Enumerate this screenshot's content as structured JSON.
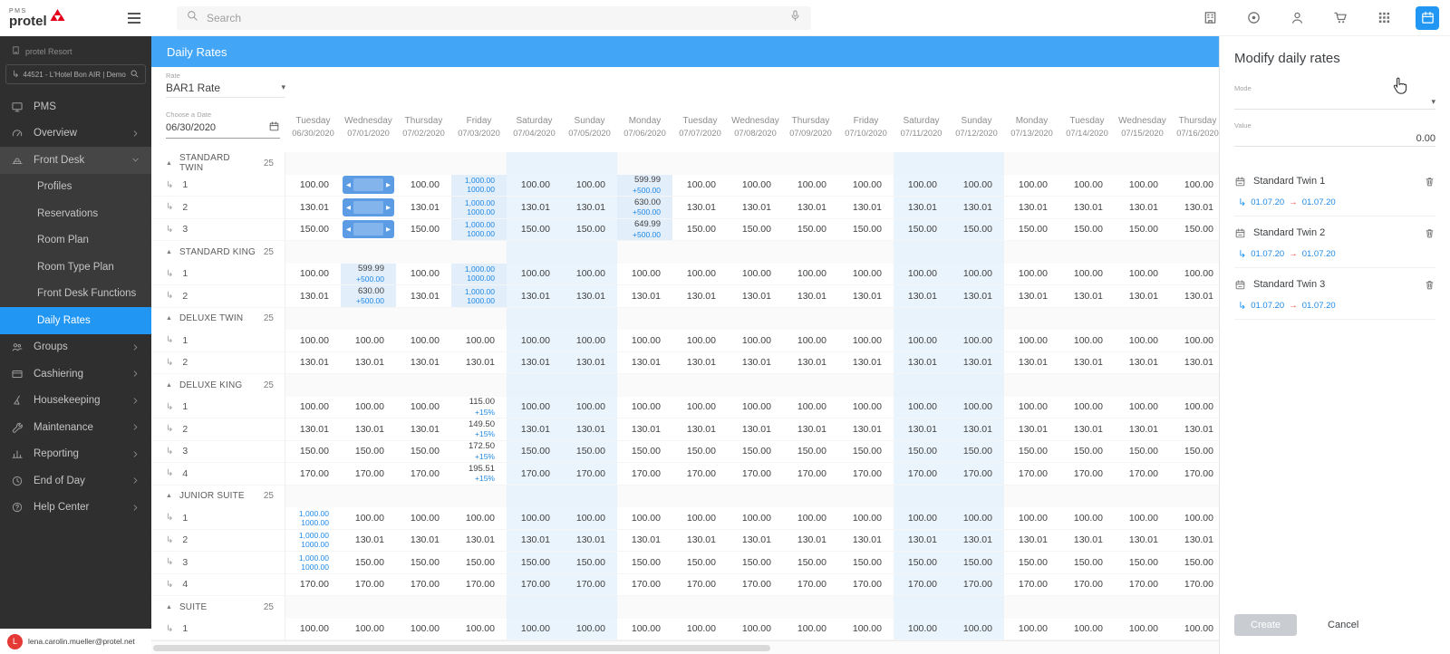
{
  "app": {
    "logo_top": "PMS",
    "logo_main": "protel",
    "brand_red": "#e2001a",
    "accent_blue": "#2196F3",
    "property_label": "protel Resort",
    "hotel_selector": "44521 - L'Hotel  Bon AIR | Demo"
  },
  "topbar": {
    "search_placeholder": "Search",
    "icons": [
      {
        "name": "hotel"
      },
      {
        "name": "record"
      },
      {
        "name": "profile"
      },
      {
        "name": "cart"
      },
      {
        "name": "apps"
      },
      {
        "name": "calendar",
        "active": true
      }
    ]
  },
  "sidebar": {
    "items": [
      {
        "label": "PMS",
        "icon": "pms"
      },
      {
        "label": "Overview",
        "icon": "overview",
        "chevron": "right"
      },
      {
        "label": "Front Desk",
        "icon": "front-desk",
        "chevron": "down",
        "expanded": true
      },
      {
        "label": "Profiles",
        "child": true
      },
      {
        "label": "Reservations",
        "child": true
      },
      {
        "label": "Room Plan",
        "child": true
      },
      {
        "label": "Room Type Plan",
        "child": true
      },
      {
        "label": "Front Desk Functions",
        "child": true
      },
      {
        "label": "Daily Rates",
        "child": true,
        "selected": true
      },
      {
        "label": "Groups",
        "icon": "groups",
        "chevron": "right"
      },
      {
        "label": "Cashiering",
        "icon": "cashiering",
        "chevron": "right"
      },
      {
        "label": "Housekeeping",
        "icon": "housekeeping",
        "chevron": "right"
      },
      {
        "label": "Maintenance",
        "icon": "maintenance",
        "chevron": "right"
      },
      {
        "label": "Reporting",
        "icon": "reporting",
        "chevron": "right"
      },
      {
        "label": "End of Day",
        "icon": "end-of-day",
        "chevron": "right"
      },
      {
        "label": "Help Center",
        "icon": "help",
        "chevron": "right"
      }
    ],
    "avatar_letter": "L",
    "user_email": "lena.carolin.mueller@protel.net"
  },
  "page": {
    "title": "Daily Rates",
    "rate_label": "Rate",
    "rate_value": "BAR1 Rate",
    "date_label": "Choose a Date",
    "date_value": "06/30/2020"
  },
  "rates_table": {
    "weekend_columns": [
      4,
      5,
      11,
      12
    ],
    "columns": [
      {
        "day": "Tuesday",
        "date": "06/30/2020"
      },
      {
        "day": "Wednesday",
        "date": "07/01/2020"
      },
      {
        "day": "Thursday",
        "date": "07/02/2020"
      },
      {
        "day": "Friday",
        "date": "07/03/2020"
      },
      {
        "day": "Saturday",
        "date": "07/04/2020"
      },
      {
        "day": "Sunday",
        "date": "07/05/2020"
      },
      {
        "day": "Monday",
        "date": "07/06/2020"
      },
      {
        "day": "Tuesday",
        "date": "07/07/2020"
      },
      {
        "day": "Wednesday",
        "date": "07/08/2020"
      },
      {
        "day": "Thursday",
        "date": "07/09/2020"
      },
      {
        "day": "Friday",
        "date": "07/10/2020"
      },
      {
        "day": "Saturday",
        "date": "07/11/2020"
      },
      {
        "day": "Sunday",
        "date": "07/12/2020"
      },
      {
        "day": "Monday",
        "date": "07/13/2020"
      },
      {
        "day": "Tuesday",
        "date": "07/14/2020"
      },
      {
        "day": "Wednesday",
        "date": "07/15/2020"
      },
      {
        "day": "Thursday",
        "date": "07/16/2020"
      }
    ],
    "groups": [
      {
        "name": "STANDARD TWIN",
        "count": "25",
        "rows": [
          {
            "label": "1",
            "value": "100.00",
            "overrides": {
              "1": {
                "type": "stepper"
              },
              "3": {
                "type": "stacked",
                "top": "1,000.00",
                "bottom": "1000.00",
                "tint": true
              },
              "6": {
                "type": "delta",
                "top": "599.99",
                "bottom": "+500.00",
                "tint": true
              }
            }
          },
          {
            "label": "2",
            "value": "130.01",
            "overrides": {
              "1": {
                "type": "stepper"
              },
              "3": {
                "type": "stacked",
                "top": "1,000.00",
                "bottom": "1000.00",
                "tint": true
              },
              "6": {
                "type": "delta",
                "top": "630.00",
                "bottom": "+500.00",
                "tint": true
              }
            }
          },
          {
            "label": "3",
            "value": "150.00",
            "overrides": {
              "1": {
                "type": "stepper"
              },
              "3": {
                "type": "stacked",
                "top": "1,000.00",
                "bottom": "1000.00",
                "tint": true
              },
              "6": {
                "type": "delta",
                "top": "649.99",
                "bottom": "+500.00",
                "tint": true
              }
            }
          }
        ]
      },
      {
        "name": "STANDARD KING",
        "count": "25",
        "rows": [
          {
            "label": "1",
            "value": "100.00",
            "overrides": {
              "1": {
                "type": "delta",
                "top": "599.99",
                "bottom": "+500.00",
                "tint": true
              },
              "3": {
                "type": "stacked",
                "top": "1,000.00",
                "bottom": "1000.00",
                "tint": true
              }
            }
          },
          {
            "label": "2",
            "value": "130.01",
            "overrides": {
              "1": {
                "type": "delta",
                "top": "630.00",
                "bottom": "+500.00",
                "tint": true
              },
              "3": {
                "type": "stacked",
                "top": "1,000.00",
                "bottom": "1000.00",
                "tint": true
              }
            }
          }
        ]
      },
      {
        "name": "DELUXE TWIN",
        "count": "25",
        "rows": [
          {
            "label": "1",
            "value": "100.00"
          },
          {
            "label": "2",
            "value": "130.01"
          }
        ]
      },
      {
        "name": "DELUXE KING",
        "count": "25",
        "rows": [
          {
            "label": "1",
            "value": "100.00",
            "overrides": {
              "3": {
                "type": "delta",
                "top": "115.00",
                "bottom": "+15%"
              }
            }
          },
          {
            "label": "2",
            "value": "130.01",
            "overrides": {
              "3": {
                "type": "delta",
                "top": "149.50",
                "bottom": "+15%"
              }
            }
          },
          {
            "label": "3",
            "value": "150.00",
            "overrides": {
              "3": {
                "type": "delta",
                "top": "172.50",
                "bottom": "+15%"
              }
            }
          },
          {
            "label": "4",
            "value": "170.00",
            "overrides": {
              "3": {
                "type": "delta",
                "top": "195.51",
                "bottom": "+15%"
              }
            }
          }
        ]
      },
      {
        "name": "JUNIOR SUITE",
        "count": "25",
        "rows": [
          {
            "label": "1",
            "value": "100.00",
            "overrides": {
              "0": {
                "type": "stacked",
                "top": "1,000.00",
                "bottom": "1000.00"
              }
            }
          },
          {
            "label": "2",
            "value": "130.01",
            "overrides": {
              "0": {
                "type": "stacked",
                "top": "1,000.00",
                "bottom": "1000.00"
              }
            }
          },
          {
            "label": "3",
            "value": "150.00",
            "overrides": {
              "0": {
                "type": "stacked",
                "top": "1,000.00",
                "bottom": "1000.00"
              }
            }
          },
          {
            "label": "4",
            "value": "170.00"
          }
        ]
      },
      {
        "name": "SUITE",
        "count": "25",
        "rows": [
          {
            "label": "1",
            "value": "100.00"
          }
        ]
      }
    ]
  },
  "modify_panel": {
    "title": "Modify daily rates",
    "mode_label": "Mode",
    "value_label": "Value",
    "value": "0.00",
    "items": [
      {
        "name": "Standard Twin 1",
        "from": "01.07.20",
        "to": "01.07.20"
      },
      {
        "name": "Standard Twin 2",
        "from": "01.07.20",
        "to": "01.07.20"
      },
      {
        "name": "Standard Twin 3",
        "from": "01.07.20",
        "to": "01.07.20"
      }
    ],
    "create_label": "Create",
    "cancel_label": "Cancel"
  }
}
